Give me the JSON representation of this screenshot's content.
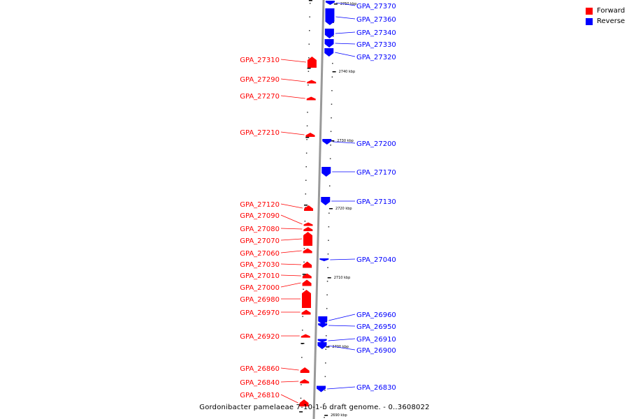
{
  "caption": "Gordonibacter pamelaeae 7-10-1-b draft genome. - 0..3608022",
  "legend": [
    {
      "label": "Forward",
      "color": "#ff0000"
    },
    {
      "label": "Reverse",
      "color": "#0000ff"
    }
  ],
  "colors": {
    "forward": "#ff0000",
    "reverse": "#0000ff",
    "backbone": "#999999"
  },
  "scale_labels": [
    "2750 kbp",
    "2740 kbp",
    "2730 kbp",
    "2720 kbp",
    "2710 kbp",
    "2700 kbp",
    "2690 kbp"
  ],
  "forward_genes": [
    "GPA_27310",
    "GPA_27290",
    "GPA_27270",
    "GPA_27210",
    "GPA_27120",
    "GPA_27090",
    "GPA_27080",
    "GPA_27070",
    "GPA_27060",
    "GPA_27030",
    "GPA_27010",
    "GPA_27000",
    "GPA_26980",
    "GPA_26970",
    "GPA_26920",
    "GPA_26860",
    "GPA_26840",
    "GPA_26810"
  ],
  "reverse_genes": [
    "GPA_27370",
    "GPA_27360",
    "GPA_27340",
    "GPA_27330",
    "GPA_27320",
    "GPA_27200",
    "GPA_27170",
    "GPA_27130",
    "GPA_27040",
    "GPA_26960",
    "GPA_26950",
    "GPA_26910",
    "GPA_26900",
    "GPA_26830"
  ]
}
